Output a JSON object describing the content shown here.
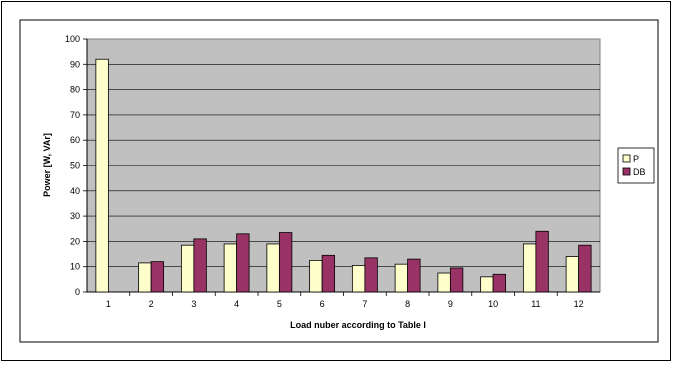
{
  "chart_data": {
    "type": "bar",
    "title": "",
    "xlabel": "Load nuber according to Table I",
    "ylabel": "Power [W, VAr]",
    "ylim": [
      0,
      100
    ],
    "yticks": [
      "0",
      "10",
      "20",
      "30",
      "40",
      "50",
      "60",
      "70",
      "80",
      "90",
      "100"
    ],
    "categories": [
      "1",
      "2",
      "3",
      "4",
      "5",
      "6",
      "7",
      "8",
      "9",
      "10",
      "11",
      "12"
    ],
    "series": [
      {
        "name": "P",
        "color": "#ffffcc",
        "values": [
          92,
          11.5,
          18.5,
          19,
          19,
          12.5,
          10.5,
          11,
          7.5,
          6,
          19,
          14
        ]
      },
      {
        "name": "DB",
        "color": "#993366",
        "values": [
          null,
          12,
          21,
          23,
          23.5,
          14.5,
          13.5,
          13,
          9.5,
          7,
          24,
          18.5
        ]
      }
    ],
    "grid": true,
    "plot_background": "#c0c0c0",
    "legend_position": "right"
  }
}
